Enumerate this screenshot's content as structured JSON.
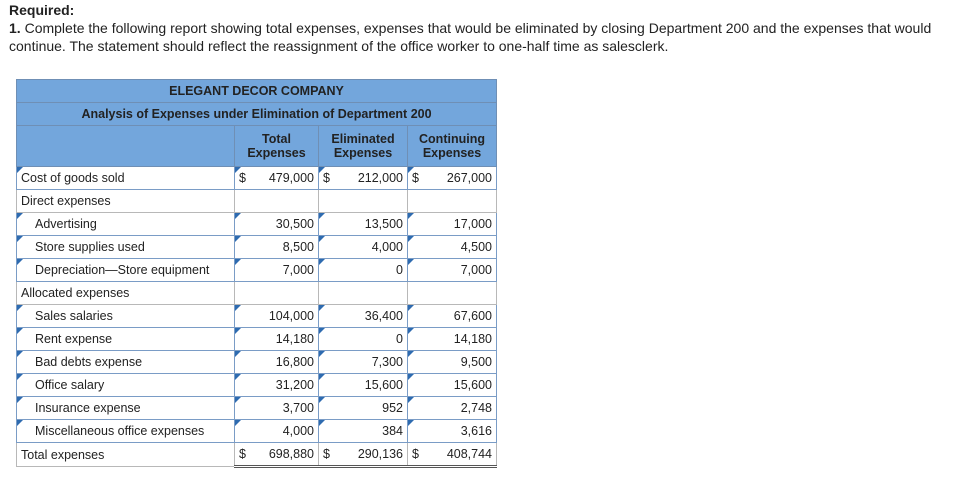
{
  "required_heading": "Required:",
  "instruction_number": "1.",
  "instruction_text": "Complete the following report showing total expenses, expenses that would be eliminated by closing Department 200 and the expenses that would continue. The statement should reflect the reassignment of the office worker to one-half time as salesclerk.",
  "report": {
    "company": "ELEGANT DECOR COMPANY",
    "title": "Analysis of Expenses under Elimination of Department 200",
    "columns": [
      "Total Expenses",
      "Eliminated Expenses",
      "Continuing Expenses"
    ],
    "col_total_1": "Total",
    "col_total_2": "Expenses",
    "col_elim_1": "Eliminated",
    "col_elim_2": "Expenses",
    "col_cont_1": "Continuing",
    "col_cont_2": "Expenses",
    "dollar": "$",
    "cogs": {
      "label": "Cost of goods sold",
      "total": "479,000",
      "eliminated": "212,000",
      "continuing": "267,000"
    },
    "direct_label": "Direct expenses",
    "advertising": {
      "label": "Advertising",
      "total": "30,500",
      "eliminated": "13,500",
      "continuing": "17,000"
    },
    "store_supplies": {
      "label": "Store supplies used",
      "total": "8,500",
      "eliminated": "4,000",
      "continuing": "4,500"
    },
    "depreciation": {
      "label": "Depreciation—Store equipment",
      "total": "7,000",
      "eliminated": "0",
      "continuing": "7,000"
    },
    "allocated_label": "Allocated expenses",
    "sales_salaries": {
      "label": "Sales salaries",
      "total": "104,000",
      "eliminated": "36,400",
      "continuing": "67,600"
    },
    "rent": {
      "label": "Rent expense",
      "total": "14,180",
      "eliminated": "0",
      "continuing": "14,180"
    },
    "bad_debts": {
      "label": "Bad debts expense",
      "total": "16,800",
      "eliminated": "7,300",
      "continuing": "9,500"
    },
    "office_salary": {
      "label": "Office salary",
      "total": "31,200",
      "eliminated": "15,600",
      "continuing": "15,600"
    },
    "insurance": {
      "label": "Insurance expense",
      "total": "3,700",
      "eliminated": "952",
      "continuing": "2,748"
    },
    "misc": {
      "label": "Miscellaneous office expenses",
      "total": "4,000",
      "eliminated": "384",
      "continuing": "3,616"
    },
    "total_row": {
      "label": "Total expenses",
      "total": "698,880",
      "eliminated": "290,136",
      "continuing": "408,744"
    }
  }
}
